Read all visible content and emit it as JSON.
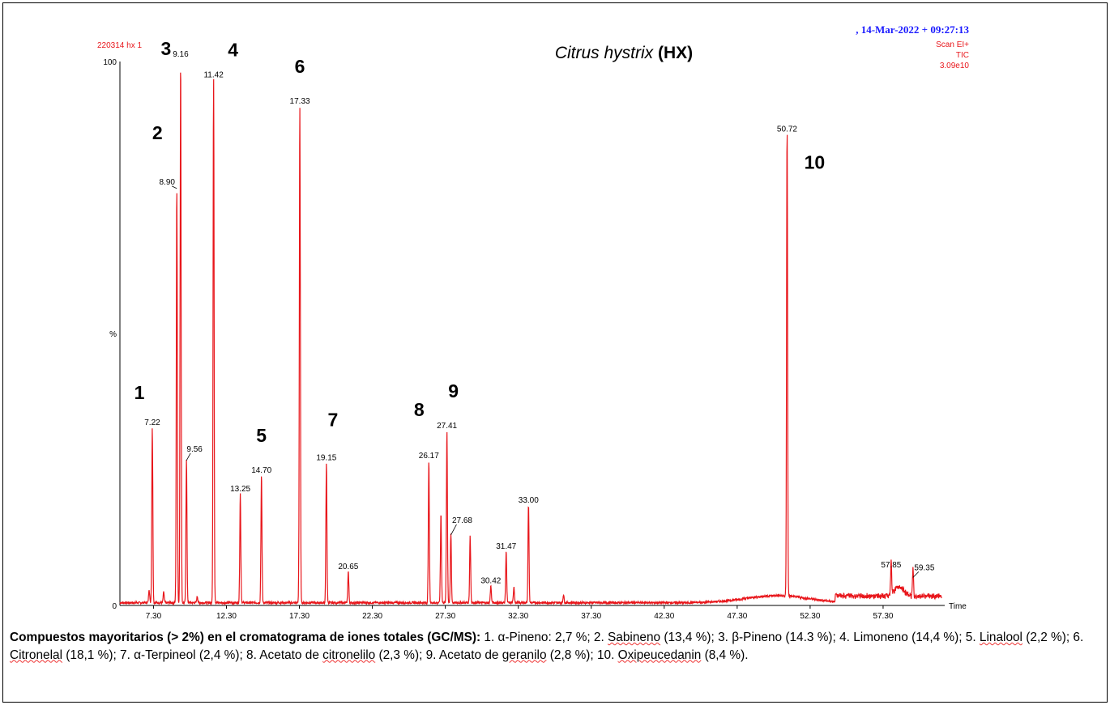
{
  "header": {
    "sample_id": "220314 hx 1",
    "title_species": "Citrus hystrix",
    "title_code": "(HX)",
    "datetime": ", 14-Mar-2022 + 09:27:13",
    "scan_mode": "Scan EI+",
    "trace": "TIC",
    "intensity": "3.09e10"
  },
  "colors": {
    "trace": "#e8161b",
    "datetime": "#1a1aff",
    "header_red": "#e8161b"
  },
  "chart_data": {
    "type": "line",
    "title": "Citrus hystrix (HX)",
    "xlabel": "Time",
    "ylabel": "%",
    "xlim": [
      5.0,
      61.3
    ],
    "ylim": [
      0,
      100
    ],
    "y_tick_labels": [
      "0",
      "%",
      "100"
    ],
    "x_ticks": [
      7.3,
      12.3,
      17.3,
      22.3,
      27.3,
      32.3,
      37.3,
      42.3,
      47.3,
      52.3,
      57.3
    ],
    "x_tick_labels": [
      "7.30",
      "12.30",
      "17.30",
      "22.30",
      "27.30",
      "32.30",
      "37.30",
      "42.30",
      "47.30",
      "52.30",
      "57.30"
    ],
    "peaks": [
      {
        "rt": 7.0,
        "height": 2.5,
        "label": ""
      },
      {
        "rt": 7.22,
        "height": 32.3,
        "label": "7.22",
        "number": "1"
      },
      {
        "rt": 8.0,
        "height": 2.0,
        "label": ""
      },
      {
        "rt": 8.9,
        "height": 76.5,
        "label": "8.90",
        "number": "2"
      },
      {
        "rt": 9.16,
        "height": 100,
        "label": "9.16",
        "number": "3"
      },
      {
        "rt": 9.56,
        "height": 26.5,
        "label": "9.56"
      },
      {
        "rt": 10.3,
        "height": 1.2,
        "label": ""
      },
      {
        "rt": 11.42,
        "height": 96.2,
        "label": "11.42",
        "number": "4"
      },
      {
        "rt": 13.25,
        "height": 20.1,
        "label": "13.25"
      },
      {
        "rt": 14.7,
        "height": 23.5,
        "label": "14.70",
        "number": "5"
      },
      {
        "rt": 17.33,
        "height": 91.4,
        "label": "17.33",
        "number": "6"
      },
      {
        "rt": 19.15,
        "height": 25.8,
        "label": "19.15",
        "number": "7"
      },
      {
        "rt": 20.65,
        "height": 5.8,
        "label": "20.65"
      },
      {
        "rt": 26.17,
        "height": 26.2,
        "label": "26.17",
        "number": "8"
      },
      {
        "rt": 27.0,
        "height": 16.5,
        "label": ""
      },
      {
        "rt": 27.41,
        "height": 31.7,
        "label": "27.41",
        "number": "9"
      },
      {
        "rt": 27.68,
        "height": 12.8,
        "label": "27.68"
      },
      {
        "rt": 29.0,
        "height": 12.3,
        "label": ""
      },
      {
        "rt": 30.42,
        "height": 3.2,
        "label": "30.42"
      },
      {
        "rt": 31.47,
        "height": 9.5,
        "label": "31.47"
      },
      {
        "rt": 32.0,
        "height": 3.0,
        "label": ""
      },
      {
        "rt": 33.0,
        "height": 18.0,
        "label": "33.00"
      },
      {
        "rt": 35.4,
        "height": 1.5,
        "label": ""
      },
      {
        "rt": 50.72,
        "height": 86.2,
        "label": "50.72",
        "number": "10"
      },
      {
        "rt": 57.85,
        "height": 6.1,
        "label": "57.85"
      },
      {
        "rt": 59.35,
        "height": 5.0,
        "label": "59.35"
      }
    ]
  },
  "caption": {
    "bold_lead": "Compuestos mayoritarios (> 2%) en el cromatograma de iones totales (GC/MS):",
    "segments": [
      {
        "t": " 1. α-Pineno: 2,7 %; 2. ",
        "u": false
      },
      {
        "t": "Sabineno",
        "u": true
      },
      {
        "t": " (13,4 %); 3. β-Pineno (14.3 %); 4. Limoneno (14,4 %); 5. ",
        "u": false
      },
      {
        "t": "Linalool",
        "u": true
      },
      {
        "t": " (2,2 %); 6. ",
        "u": false
      },
      {
        "t": "Citronelal",
        "u": true
      },
      {
        "t": " (18,1 %); 7. α-Terpineol (2,4 %); 8. Acetato de ",
        "u": false
      },
      {
        "t": "citronelilo",
        "u": true
      },
      {
        "t": " (2,3 %); 9. Acetato de ",
        "u": false
      },
      {
        "t": "geranilo",
        "u": true
      },
      {
        "t": " (2,8 %); 10. ",
        "u": false
      },
      {
        "t": "Oxipeucedanin",
        "u": true
      },
      {
        "t": " (8,4 %).",
        "u": false
      }
    ]
  }
}
